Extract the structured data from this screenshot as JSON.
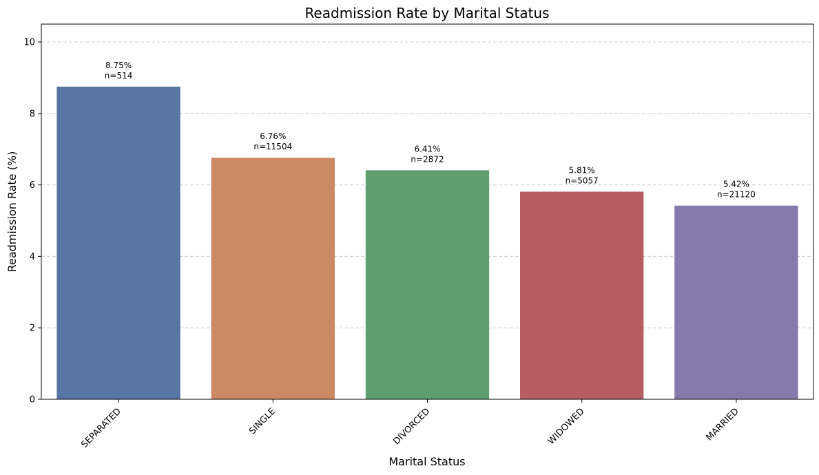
{
  "chart_data": {
    "type": "bar",
    "title": "Readmission Rate by Marital Status",
    "xlabel": "Marital Status",
    "ylabel": "Readmission Rate (%)",
    "ylim": [
      0,
      10.5
    ],
    "yticks": [
      0,
      2,
      4,
      6,
      8,
      10
    ],
    "grid": "y-dashed",
    "categories": [
      "SEPARATED",
      "SINGLE",
      "DIVORCED",
      "WIDOWED",
      "MARRIED"
    ],
    "values": [
      8.75,
      6.76,
      6.41,
      5.81,
      5.42
    ],
    "value_labels": [
      "8.75%",
      "6.76%",
      "6.41%",
      "5.81%",
      "5.42%"
    ],
    "counts": [
      "n=514",
      "n=11504",
      "n=2872",
      "n=5057",
      "n=21120"
    ],
    "colors": [
      "#5975a4",
      "#cc8963",
      "#5f9e6e",
      "#b55d60",
      "#857aab"
    ]
  }
}
